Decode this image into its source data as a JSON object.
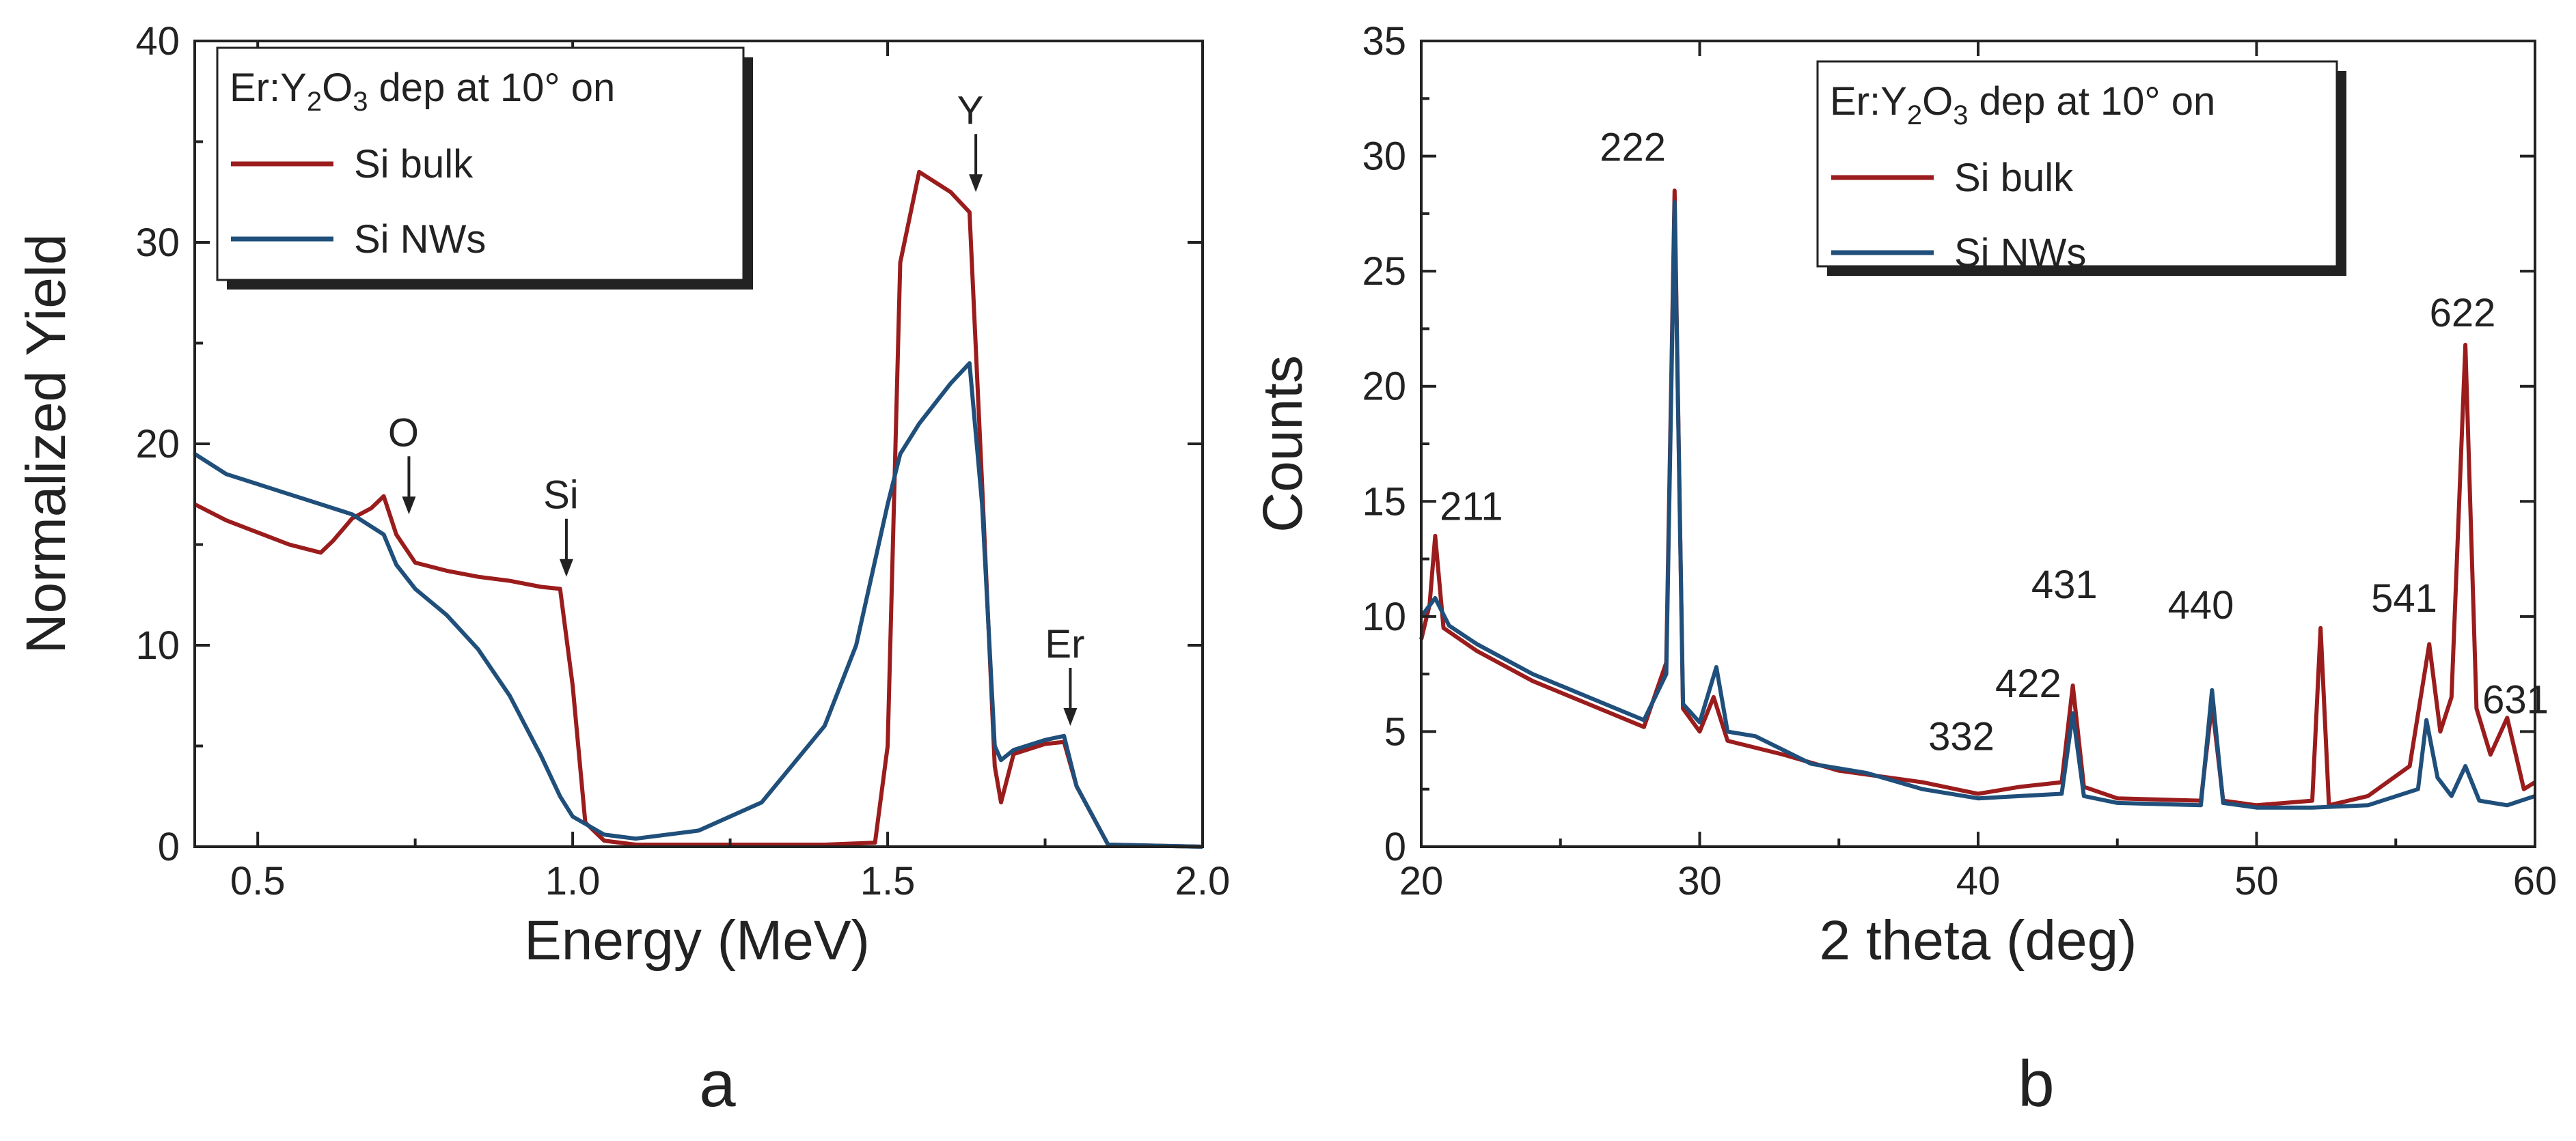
{
  "chart_data": [
    {
      "type": "line",
      "panel_label": "a",
      "xlabel": "Energy (MeV)",
      "ylabel": "Normalized Yield",
      "xlim": [
        0.4,
        2.0
      ],
      "ylim": [
        0,
        40
      ],
      "xticks": [
        "0.5",
        "1.0",
        "1.5",
        "2.0"
      ],
      "yticks": [
        "0",
        "10",
        "20",
        "30",
        "40"
      ],
      "legend": {
        "position": "top-left",
        "title_parts": [
          "Er:Y",
          "2",
          "O",
          "3",
          " dep at 10° on"
        ],
        "entries": [
          "Si bulk",
          "Si NWs"
        ]
      },
      "colors": {
        "Si bulk": "#9b1c1c",
        "Si NWs": "#1f4f7a"
      },
      "series": [
        {
          "name": "Si bulk",
          "x": [
            0.4,
            0.45,
            0.5,
            0.55,
            0.6,
            0.62,
            0.65,
            0.68,
            0.7,
            0.72,
            0.75,
            0.8,
            0.85,
            0.9,
            0.95,
            0.98,
            1.0,
            1.02,
            1.05,
            1.1,
            1.2,
            1.3,
            1.4,
            1.48,
            1.5,
            1.52,
            1.55,
            1.6,
            1.63,
            1.65,
            1.67,
            1.68,
            1.7,
            1.75,
            1.78,
            1.8,
            1.85,
            2.0
          ],
          "y": [
            17.0,
            16.2,
            15.6,
            15.0,
            14.6,
            15.2,
            16.3,
            16.8,
            17.4,
            15.5,
            14.1,
            13.7,
            13.4,
            13.2,
            12.9,
            12.8,
            8.0,
            1.2,
            0.3,
            0.1,
            0.1,
            0.1,
            0.1,
            0.2,
            5.0,
            29.0,
            33.5,
            32.5,
            31.5,
            18.0,
            4.0,
            2.2,
            4.6,
            5.1,
            5.2,
            3.0,
            0.1,
            0.0
          ]
        },
        {
          "name": "Si NWs",
          "x": [
            0.4,
            0.45,
            0.5,
            0.55,
            0.6,
            0.65,
            0.7,
            0.72,
            0.75,
            0.8,
            0.85,
            0.9,
            0.95,
            0.98,
            1.0,
            1.05,
            1.1,
            1.2,
            1.3,
            1.4,
            1.45,
            1.5,
            1.52,
            1.55,
            1.6,
            1.63,
            1.65,
            1.67,
            1.68,
            1.7,
            1.75,
            1.78,
            1.8,
            1.85,
            2.0
          ],
          "y": [
            19.5,
            18.5,
            18.0,
            17.5,
            17.0,
            16.5,
            15.5,
            14.0,
            12.8,
            11.5,
            9.8,
            7.5,
            4.5,
            2.5,
            1.5,
            0.6,
            0.4,
            0.8,
            2.2,
            6.0,
            10.0,
            17.0,
            19.5,
            21.0,
            23.0,
            24.0,
            17.0,
            5.0,
            4.3,
            4.8,
            5.3,
            5.5,
            3.0,
            0.1,
            0.0
          ]
        }
      ],
      "annotations": [
        {
          "text": "O",
          "x": 0.74,
          "y": 16.5
        },
        {
          "text": "Si",
          "x": 0.99,
          "y": 13.4
        },
        {
          "text": "Y",
          "x": 1.64,
          "y": 32.5
        },
        {
          "text": "Er",
          "x": 1.79,
          "y": 6.0
        }
      ]
    },
    {
      "type": "line",
      "panel_label": "b",
      "xlabel": "2 theta (deg)",
      "ylabel": "Counts",
      "xlim": [
        20,
        60
      ],
      "ylim": [
        0,
        35
      ],
      "xticks": [
        "20",
        "30",
        "40",
        "50",
        "60"
      ],
      "yticks": [
        "0",
        "5",
        "10",
        "15",
        "20",
        "25",
        "30",
        "35"
      ],
      "legend": {
        "position": "top-right",
        "title_parts": [
          "Er:Y",
          "2",
          "O",
          "3",
          " dep at 10° on"
        ],
        "entries": [
          "Si bulk",
          "Si NWs"
        ]
      },
      "colors": {
        "Si bulk": "#9b1c1c",
        "Si NWs": "#1f4f7a"
      },
      "series": [
        {
          "name": "Si bulk",
          "x": [
            20,
            20.3,
            20.5,
            20.8,
            22,
            24,
            26,
            28,
            28.8,
            29.1,
            29.4,
            30,
            30.5,
            31,
            33,
            35,
            38,
            40,
            41.5,
            43,
            43.4,
            43.8,
            45,
            48,
            48.4,
            48.8,
            50,
            52,
            52.3,
            52.6,
            54,
            55.5,
            56.2,
            56.6,
            57,
            57.5,
            57.9,
            58.4,
            59,
            59.6,
            60
          ],
          "y": [
            9.0,
            10.5,
            13.5,
            9.5,
            8.5,
            7.2,
            6.2,
            5.2,
            8.0,
            28.5,
            6.0,
            5.0,
            6.5,
            4.6,
            4.0,
            3.3,
            2.8,
            2.3,
            2.6,
            2.8,
            7.0,
            2.6,
            2.1,
            2.0,
            6.2,
            2.0,
            1.8,
            2.0,
            9.5,
            1.8,
            2.2,
            3.5,
            8.8,
            5.0,
            6.5,
            21.8,
            6.0,
            4.0,
            5.6,
            2.5,
            2.8
          ]
        },
        {
          "name": "Si NWs",
          "x": [
            20,
            20.5,
            21,
            22,
            24,
            26,
            28,
            28.8,
            29.1,
            29.4,
            30,
            30.6,
            31,
            32,
            34,
            36,
            38,
            40,
            43,
            43.4,
            43.8,
            45,
            48,
            48.4,
            48.8,
            50,
            52,
            54,
            55.8,
            56.1,
            56.5,
            57,
            57.5,
            58,
            59,
            60
          ],
          "y": [
            10.0,
            10.8,
            9.6,
            8.8,
            7.5,
            6.5,
            5.5,
            7.5,
            28.0,
            6.2,
            5.4,
            7.8,
            5.0,
            4.8,
            3.6,
            3.2,
            2.5,
            2.1,
            2.3,
            5.8,
            2.2,
            1.9,
            1.8,
            6.8,
            1.9,
            1.7,
            1.7,
            1.8,
            2.5,
            5.5,
            3.0,
            2.2,
            3.5,
            2.0,
            1.8,
            2.2
          ]
        }
      ],
      "annotations": [
        {
          "text": "211",
          "x": 21.8,
          "y": 14.2
        },
        {
          "text": "222",
          "x": 27.6,
          "y": 29.8
        },
        {
          "text": "332",
          "x": 39.4,
          "y": 4.2
        },
        {
          "text": "422",
          "x": 41.8,
          "y": 6.5
        },
        {
          "text": "431",
          "x": 43.1,
          "y": 10.8
        },
        {
          "text": "440",
          "x": 48.0,
          "y": 9.9
        },
        {
          "text": "541",
          "x": 55.3,
          "y": 10.2
        },
        {
          "text": "622",
          "x": 57.4,
          "y": 22.6
        },
        {
          "text": "631",
          "x": 59.3,
          "y": 5.8
        }
      ]
    }
  ]
}
